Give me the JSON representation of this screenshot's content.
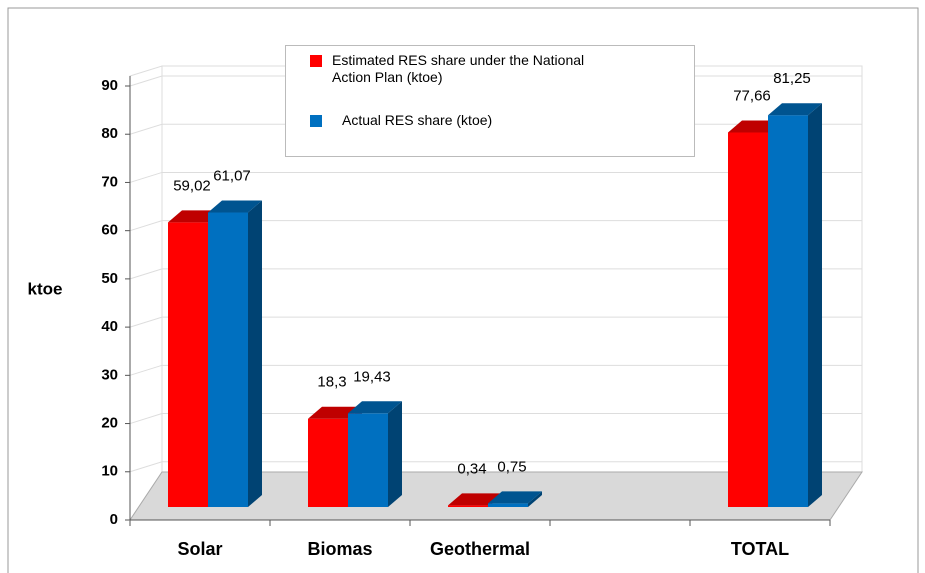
{
  "chart_data": {
    "type": "bar3d",
    "y_label": "ktoe",
    "categories": [
      "Solar",
      "Biomas",
      "Geothermal",
      null,
      "TOTAL"
    ],
    "series": [
      {
        "name": "Estimated RES share under the National Action Plan (ktoe)",
        "color": "#ff0000",
        "values": [
          59.02,
          18.3,
          0.34,
          null,
          77.66
        ],
        "value_labels": [
          "59,02",
          "18,3",
          "0,34",
          null,
          "77,66"
        ]
      },
      {
        "name": "Actual RES share (ktoe)",
        "color": "#0070c0",
        "values": [
          61.07,
          19.43,
          0.75,
          null,
          81.25
        ],
        "value_labels": [
          "61,07",
          "19,43",
          "0,75",
          null,
          "81,25"
        ]
      }
    ],
    "ylim": [
      0,
      90
    ],
    "yticks": [
      0,
      10,
      20,
      30,
      40,
      50,
      60,
      70,
      80,
      90
    ],
    "grid": true
  }
}
